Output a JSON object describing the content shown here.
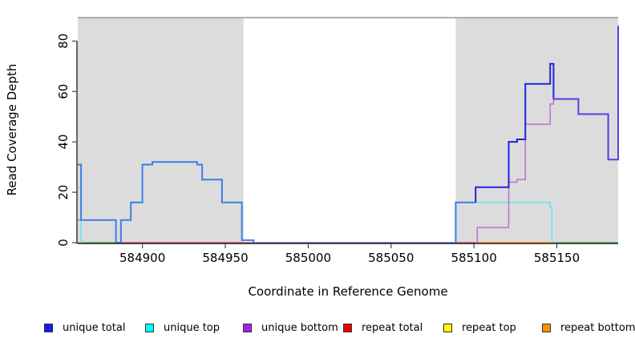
{
  "axes": {
    "x_title": "Coordinate in Reference Genome",
    "y_title": "Read Coverage Depth"
  },
  "chart_data": {
    "type": "line",
    "subtype": "step-coverage",
    "title": "",
    "xlabel": "Coordinate in Reference Genome",
    "ylabel": "Read Coverage Depth",
    "x_range": [
      584861,
      585187
    ],
    "y_range": [
      0,
      89.3
    ],
    "grid": false,
    "x_ticks": [
      {
        "value": 584900,
        "label": "584900"
      },
      {
        "value": 584950,
        "label": "584950"
      },
      {
        "value": 585000,
        "label": "585000"
      },
      {
        "value": 585050,
        "label": "585050"
      },
      {
        "value": 585100,
        "label": "585100"
      },
      {
        "value": 585150,
        "label": "585150"
      }
    ],
    "y_ticks": [
      {
        "value": 0,
        "label": "0"
      },
      {
        "value": 20,
        "label": "20"
      },
      {
        "value": 40,
        "label": "40"
      },
      {
        "value": 60,
        "label": "60"
      },
      {
        "value": 80,
        "label": "80"
      }
    ],
    "region_color": "#dcdcdc",
    "top_border_color": "#979797",
    "shaded_regions": [
      {
        "from": 584861,
        "to": 584961
      },
      {
        "from": 585089,
        "to": 585187
      }
    ],
    "baseline_note": "zero-depth overlapped series segments along y=0, colors as rendered",
    "baseline_segments": [
      {
        "from": 584861,
        "to": 584863,
        "color": "#f89222"
      },
      {
        "from": 584863,
        "to": 584884,
        "color": "#63bf6e"
      },
      {
        "from": 584887,
        "to": 584967,
        "color": "#dd5f75"
      },
      {
        "from": 584967,
        "to": 585089,
        "color": "#8273e0"
      },
      {
        "from": 585089,
        "to": 585101,
        "color": "#d45c84"
      },
      {
        "from": 585101,
        "to": 585147,
        "color": "#ff9100"
      },
      {
        "from": 585147,
        "to": 585187,
        "color": "#63bf6e"
      }
    ],
    "series": [
      {
        "name": "unique top",
        "color": "#66e4ea",
        "width": 1.5,
        "segments": [
          {
            "steps": [
              [
                584861,
                22
              ],
              [
                584863,
                22
              ],
              [
                584863,
                0
              ]
            ]
          },
          {
            "steps": [
              [
                585089,
                0
              ],
              [
                585089,
                16
              ],
              [
                585146,
                16
              ],
              [
                585146,
                14
              ],
              [
                585147,
                14
              ],
              [
                585147,
                0
              ]
            ]
          }
        ]
      },
      {
        "name": "unique bottom",
        "color": "#bd6fd6",
        "width": 1.5,
        "segments": [
          {
            "steps": [
              [
                584861,
                9
              ],
              [
                584884,
                9
              ],
              [
                584884,
                0
              ]
            ]
          },
          {
            "steps": [
              [
                585102,
                0
              ],
              [
                585102,
                6
              ],
              [
                585121,
                6
              ],
              [
                585121,
                24
              ],
              [
                585126,
                24
              ],
              [
                585126,
                25
              ],
              [
                585131,
                25
              ],
              [
                585131,
                47
              ],
              [
                585146,
                47
              ],
              [
                585146,
                55
              ],
              [
                585148,
                55
              ],
              [
                585148,
                57
              ],
              [
                585163,
                57
              ],
              [
                585163,
                51
              ],
              [
                585181,
                51
              ],
              [
                585181,
                33
              ],
              [
                585187,
                33
              ],
              [
                585187,
                86
              ]
            ]
          }
        ]
      },
      {
        "name": "unique total",
        "color": "#3d7ee8",
        "width": 2,
        "segments": [
          {
            "steps": [
              [
                584861,
                31
              ],
              [
                584863,
                31
              ],
              [
                584863,
                9
              ],
              [
                584884,
                9
              ],
              [
                584884,
                0
              ],
              [
                584887,
                0
              ],
              [
                584887,
                9
              ],
              [
                584893,
                9
              ],
              [
                584893,
                16
              ],
              [
                584900,
                16
              ],
              [
                584900,
                31
              ],
              [
                584906,
                31
              ],
              [
                584906,
                32
              ],
              [
                584933,
                32
              ],
              [
                584933,
                31
              ],
              [
                584936,
                31
              ],
              [
                584936,
                25
              ],
              [
                584948,
                25
              ],
              [
                584948,
                16
              ],
              [
                584960,
                16
              ],
              [
                584960,
                1
              ],
              [
                584967,
                1
              ],
              [
                584967,
                0
              ]
            ]
          },
          {
            "steps": [
              [
                585089,
                0
              ],
              [
                585089,
                16
              ],
              [
                585101,
                16
              ]
            ]
          },
          {
            "color": "#2222dd",
            "steps": [
              [
                585101,
                16
              ],
              [
                585101,
                22
              ],
              [
                585121,
                22
              ],
              [
                585121,
                40
              ],
              [
                585126,
                40
              ],
              [
                585126,
                41
              ],
              [
                585131,
                41
              ],
              [
                585131,
                63
              ],
              [
                585146,
                63
              ],
              [
                585146,
                71
              ],
              [
                585148,
                71
              ],
              [
                585148,
                57
              ]
            ]
          },
          {
            "color": "#5b3ce8",
            "steps": [
              [
                585148,
                57
              ],
              [
                585163,
                57
              ],
              [
                585163,
                51
              ],
              [
                585181,
                51
              ],
              [
                585181,
                33
              ],
              [
                585187,
                33
              ],
              [
                585187,
                86
              ]
            ]
          }
        ]
      },
      {
        "name": "repeat total",
        "color": "#ee0000",
        "width": 1.5,
        "segments": [
          {
            "steps": [
              [
                584861,
                0
              ],
              [
                585187,
                0
              ]
            ]
          }
        ]
      },
      {
        "name": "repeat top",
        "color": "#ffff00",
        "width": 1.5,
        "segments": [
          {
            "steps": [
              [
                584861,
                0
              ],
              [
                585187,
                0
              ]
            ]
          }
        ]
      },
      {
        "name": "repeat bottom",
        "color": "#f59300",
        "width": 1.5,
        "segments": [
          {
            "steps": [
              [
                584861,
                0
              ],
              [
                585187,
                0
              ]
            ]
          }
        ]
      }
    ],
    "legend_position": "bottom"
  },
  "legend": {
    "items": [
      {
        "label": "unique total",
        "color": "#1a1aee"
      },
      {
        "label": "unique top",
        "color": "#00ffff"
      },
      {
        "label": "unique bottom",
        "color": "#a020f0"
      },
      {
        "label": "repeat total",
        "color": "#ee0000"
      },
      {
        "label": "repeat top",
        "color": "#ffff00"
      },
      {
        "label": "repeat bottom",
        "color": "#f59300"
      }
    ]
  }
}
